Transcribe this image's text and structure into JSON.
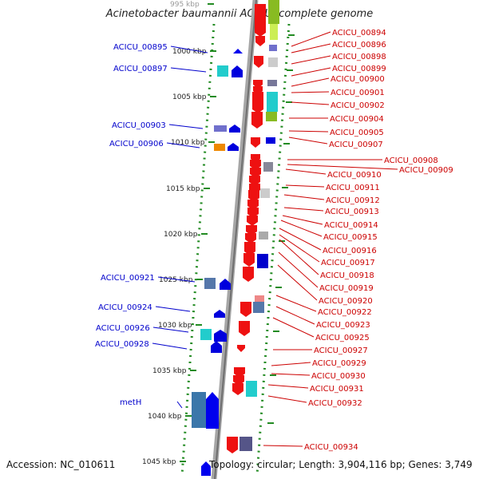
{
  "title": "Acinetobacter baumannii ACICU, complete genome",
  "footer": {
    "accession": "Accession: NC_010611",
    "topology": "Topology: circular; Length: 3,904,116 bp; Genes: 3,749"
  },
  "colors": {
    "left_label": "#0000cc",
    "right_label": "#cc0000",
    "grid": "#228b22",
    "axis": "#888888"
  },
  "scale": {
    "unit": "kbp",
    "ticks": [
      "995 kbp",
      "1000 kbp",
      "1005 kbp",
      "1010 kbp",
      "1015 kbp",
      "1020 kbp",
      "1025 kbp",
      "1030 kbp",
      "1035 kbp",
      "1040 kbp",
      "1045 kbp"
    ]
  },
  "left_genes": [
    "ACICU_00895",
    "ACICU_00897",
    "ACICU_00903",
    "ACICU_00906",
    "ACICU_00921",
    "ACICU_00924",
    "ACICU_00926",
    "ACICU_00928",
    "metH"
  ],
  "right_genes": [
    "ACICU_00894",
    "ACICU_00896",
    "ACICU_00898",
    "ACICU_00899",
    "ACICU_00900",
    "ACICU_00901",
    "ACICU_00902",
    "ACICU_00904",
    "ACICU_00905",
    "ACICU_00907",
    "ACICU_00908",
    "ACICU_00909",
    "ACICU_00910",
    "ACICU_00911",
    "ACICU_00912",
    "ACICU_00913",
    "ACICU_00914",
    "ACICU_00915",
    "ACICU_00916",
    "ACICU_00917",
    "ACICU_00918",
    "ACICU_00919",
    "ACICU_00920",
    "ACICU_00922",
    "ACICU_00923",
    "ACICU_00925",
    "ACICU_00927",
    "ACICU_00929",
    "ACICU_00930",
    "ACICU_00931",
    "ACICU_00932",
    "ACICU_00934"
  ]
}
